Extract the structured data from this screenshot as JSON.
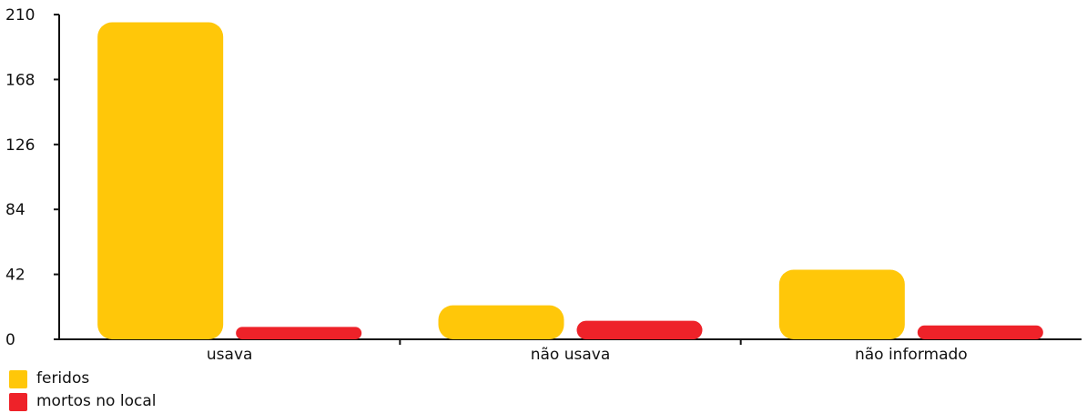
{
  "chart_data": {
    "type": "bar",
    "categories": [
      "usava",
      "não usava",
      "não informado"
    ],
    "series": [
      {
        "name": "feridos",
        "values": [
          205,
          22,
          45
        ],
        "color": "#FFC709"
      },
      {
        "name": "mortos no local",
        "values": [
          8,
          12,
          9
        ],
        "color": "#EE2229"
      }
    ],
    "y_ticks": [
      "0",
      "42",
      "84",
      "126",
      "168",
      "210"
    ],
    "ylim": [
      0,
      210
    ],
    "grid": false,
    "legend_position": "bottom-left"
  }
}
